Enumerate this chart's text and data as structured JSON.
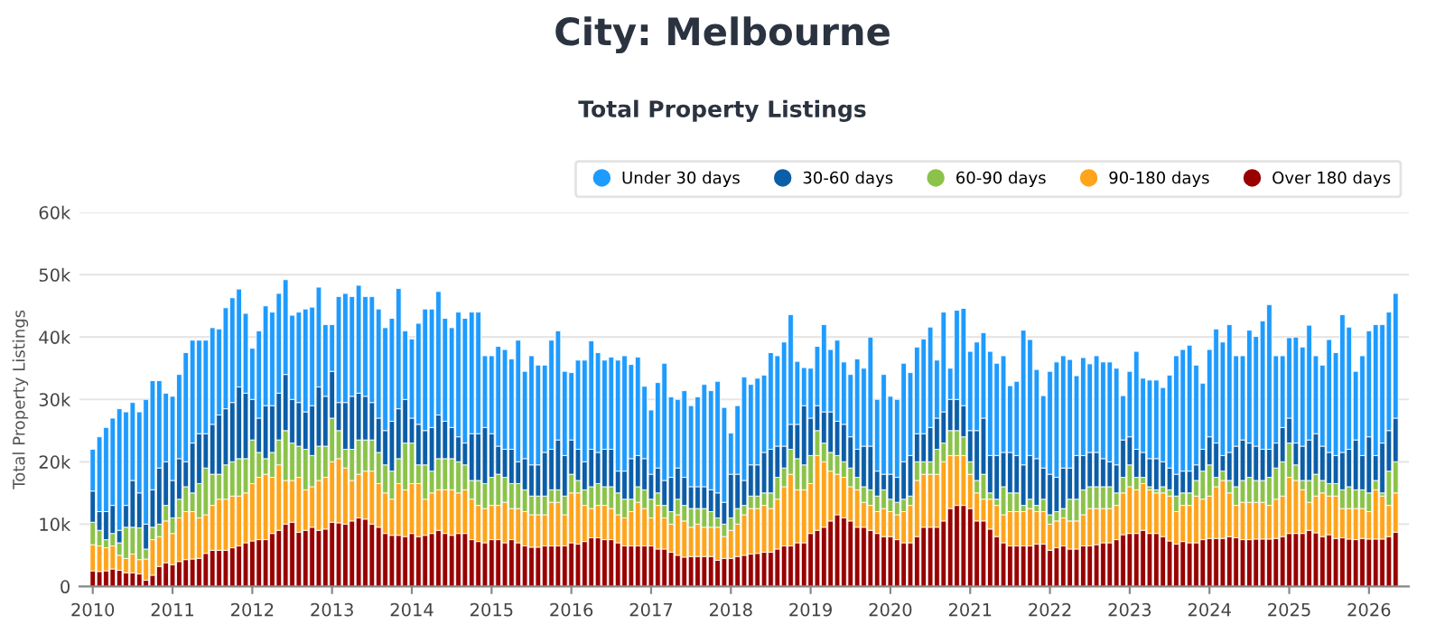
{
  "chart_data": {
    "type": "bar",
    "title": "City: Melbourne",
    "subtitle": "Total Property Listings",
    "ylabel": "Total Property Listings",
    "stacked": true,
    "grid": "y",
    "legend": "top right",
    "ylim": [
      0,
      60000
    ],
    "yticks": [
      0,
      {
        "value": 10000,
        "label": "10k"
      },
      {
        "value": 20000,
        "label": "20k"
      },
      {
        "value": 30000,
        "label": "30k"
      },
      {
        "value": 40000,
        "label": "40k"
      },
      {
        "value": 50000,
        "label": "50k"
      },
      {
        "value": 60000,
        "label": "60k"
      }
    ],
    "categories": [
      "2010",
      null,
      null,
      null,
      null,
      null,
      null,
      null,
      null,
      null,
      null,
      null,
      "2011",
      null,
      null,
      null,
      null,
      null,
      null,
      null,
      null,
      null,
      null,
      null,
      "2012",
      null,
      null,
      null,
      null,
      null,
      null,
      null,
      null,
      null,
      null,
      null,
      "2013",
      null,
      null,
      null,
      null,
      null,
      null,
      null,
      null,
      null,
      null,
      null,
      "2014",
      null,
      null,
      null,
      null,
      null,
      null,
      null,
      null,
      null,
      null,
      null,
      "2015",
      null,
      null,
      null,
      null,
      null,
      null,
      null,
      null,
      null,
      null,
      null,
      "2016",
      null,
      null,
      null,
      null,
      null,
      null,
      null,
      null,
      null,
      null,
      null,
      "2017",
      null,
      null,
      null,
      null,
      null,
      null,
      null,
      null,
      null,
      null,
      null,
      "2018",
      null,
      null,
      null,
      null,
      null,
      null,
      null,
      null,
      null,
      null,
      null,
      "2019",
      null,
      null,
      null,
      null,
      null,
      null,
      null,
      null,
      null,
      null,
      null,
      "2020",
      null,
      null,
      null,
      null,
      null,
      null,
      null,
      null,
      null,
      null,
      null,
      "2021",
      null,
      null,
      null,
      null,
      null,
      null,
      null,
      null,
      null,
      null,
      null,
      "2022",
      null,
      null,
      null,
      null,
      null,
      null,
      null,
      null,
      null,
      null,
      null,
      "2023",
      null,
      null,
      null,
      null,
      null,
      null,
      null,
      null,
      null,
      null,
      null,
      "2024",
      null,
      null,
      null,
      null,
      null,
      null,
      null,
      null,
      null,
      null,
      null,
      "2025",
      null,
      null,
      null,
      null,
      null,
      null,
      null,
      null,
      null,
      null,
      null,
      "2026",
      null,
      null,
      null,
      null
    ],
    "series": [
      {
        "name": "Over 180 days",
        "color": "#990000",
        "values": [
          2500,
          2400,
          2500,
          2800,
          2600,
          2200,
          2200,
          2000,
          1000,
          1800,
          3200,
          3800,
          3500,
          4000,
          4300,
          4400,
          4500,
          5300,
          5800,
          5800,
          5800,
          6200,
          6500,
          7000,
          7300,
          7500,
          7500,
          8500,
          9000,
          10000,
          10300,
          8700,
          9000,
          9500,
          9000,
          9200,
          10300,
          10200,
          10000,
          10500,
          11000,
          10800,
          10000,
          9500,
          8500,
          8200,
          8200,
          8000,
          8500,
          8000,
          8200,
          8500,
          9000,
          8500,
          8200,
          8500,
          8500,
          7500,
          7200,
          7000,
          7500,
          7500,
          7000,
          7500,
          7000,
          6500,
          6300,
          6300,
          6500,
          6500,
          6500,
          6500,
          7000,
          6800,
          7200,
          7800,
          7800,
          7500,
          7500,
          7000,
          6500,
          6500,
          6500,
          6500,
          6500,
          6000,
          6000,
          5500,
          5000,
          4700,
          4800,
          4800,
          4800,
          4800,
          4200,
          4500,
          4500,
          4800,
          5000,
          5200,
          5300,
          5500,
          5500,
          6000,
          6500,
          6500,
          7000,
          7000,
          8500,
          9000,
          9500,
          10500,
          11500,
          11000,
          10500,
          9500,
          9500,
          9000,
          8500,
          8000,
          8000,
          7500,
          7000,
          7000,
          8000,
          9500,
          9500,
          9500,
          10500,
          12500,
          13000,
          13000,
          12500,
          10500,
          10500,
          9200,
          8000,
          7000,
          6500,
          6500,
          6500,
          6500,
          6800,
          6800,
          5800,
          6200,
          6500,
          6000,
          6000,
          6500,
          6500,
          6700,
          7000,
          7000,
          7500,
          8300,
          8500,
          8500,
          9000,
          8500,
          8500,
          8000,
          7300,
          6800,
          7200,
          7000,
          7000,
          7500,
          7700,
          7700,
          7700,
          8000,
          7800,
          7500,
          7500,
          7600,
          7600,
          7600,
          7700,
          8000,
          8500,
          8500,
          8500,
          9000,
          8600,
          8000,
          8300,
          7700,
          7800,
          7600,
          7500,
          7700,
          7600,
          7600,
          7600,
          8000,
          8700
        ]
      },
      {
        "name": "90-180 days",
        "color": "#ffa41b",
        "values": [
          4200,
          4100,
          3700,
          3700,
          2400,
          2300,
          3000,
          2300,
          3400,
          5700,
          4800,
          6700,
          5000,
          7000,
          7700,
          7600,
          6500,
          6200,
          7200,
          8200,
          8200,
          8300,
          8000,
          8000,
          9200,
          10000,
          10500,
          9000,
          10500,
          7000,
          6700,
          8800,
          6500,
          6500,
          8000,
          8300,
          9700,
          10300,
          9000,
          6500,
          7000,
          7700,
          8500,
          7000,
          6500,
          5800,
          8300,
          7500,
          8000,
          8500,
          5800,
          6500,
          6500,
          7000,
          7300,
          6500,
          7000,
          6500,
          5800,
          5500,
          5500,
          5500,
          6500,
          5000,
          5500,
          5500,
          5200,
          5200,
          5000,
          7000,
          7000,
          5000,
          8000,
          8200,
          5800,
          4700,
          5200,
          5500,
          5000,
          4500,
          4500,
          5500,
          7000,
          6000,
          4500,
          7000,
          5000,
          4500,
          6500,
          5800,
          4700,
          5200,
          4700,
          4700,
          5300,
          3500,
          4500,
          5200,
          6500,
          7300,
          7200,
          7500,
          7000,
          8000,
          9500,
          11500,
          8500,
          8500,
          8000,
          12000,
          10500,
          8000,
          6500,
          6500,
          5500,
          6000,
          4000,
          4000,
          3500,
          4500,
          4000,
          4000,
          5000,
          6000,
          9000,
          8500,
          8500,
          8500,
          9500,
          8500,
          8000,
          8000,
          5500,
          4500,
          3500,
          4800,
          5000,
          4500,
          5500,
          5500,
          5500,
          6000,
          5200,
          5200,
          4200,
          4300,
          4500,
          4500,
          4500,
          5000,
          6000,
          5800,
          5500,
          5500,
          5500,
          6700,
          7500,
          7000,
          7500,
          7000,
          6500,
          7000,
          7200,
          5200,
          5800,
          6000,
          7500,
          6500,
          6800,
          8300,
          9300,
          7000,
          5200,
          6000,
          6000,
          5900,
          5900,
          5400,
          6300,
          6500,
          9000,
          8500,
          7000,
          4500,
          5900,
          7000,
          6200,
          6800,
          4700,
          4900,
          5000,
          4800,
          4400,
          7900,
          6900,
          5000,
          6300
        ]
      },
      {
        "name": "60-90 days",
        "color": "#8bc34a",
        "values": [
          3600,
          2500,
          1300,
          2000,
          2000,
          5000,
          4300,
          5100,
          1600,
          2000,
          2000,
          2500,
          2500,
          3000,
          4000,
          3000,
          5500,
          7500,
          5000,
          4000,
          5500,
          5500,
          6000,
          5500,
          7000,
          4000,
          2500,
          4000,
          4000,
          8000,
          6000,
          5000,
          6500,
          5000,
          5500,
          5000,
          7000,
          4500,
          3000,
          5000,
          5500,
          5000,
          5000,
          5000,
          4500,
          4500,
          4000,
          7500,
          6500,
          3000,
          5500,
          3500,
          5000,
          5000,
          5000,
          5000,
          4000,
          3000,
          4000,
          4000,
          4500,
          5000,
          4000,
          4000,
          4000,
          3500,
          3000,
          3000,
          3000,
          2000,
          2000,
          3000,
          3000,
          2000,
          2500,
          3500,
          3500,
          3000,
          3500,
          3500,
          3000,
          2000,
          2500,
          3000,
          3000,
          2000,
          2000,
          2000,
          2500,
          2500,
          3000,
          2500,
          3000,
          2500,
          1500,
          2000,
          2000,
          2500,
          1500,
          2000,
          2000,
          2000,
          2500,
          3500,
          3000,
          4000,
          5000,
          4000,
          4500,
          4000,
          3000,
          3000,
          3000,
          2500,
          3000,
          2000,
          2500,
          2500,
          2500,
          3000,
          2000,
          2000,
          2000,
          1500,
          3000,
          2000,
          2000,
          4000,
          3000,
          4000,
          4000,
          3000,
          2000,
          2000,
          4000,
          1000,
          1000,
          4500,
          3000,
          3000,
          1000,
          1500,
          1000,
          2000,
          1500,
          1500,
          1500,
          3500,
          3500,
          4000,
          3500,
          3500,
          3500,
          3500,
          2000,
          2500,
          3500,
          2000,
          1000,
          500,
          500,
          1000,
          1000,
          2500,
          2000,
          2000,
          2500,
          4500,
          5000,
          1500,
          1500,
          2000,
          3000,
          3500,
          4000,
          3500,
          3500,
          4500,
          5000,
          5500,
          5500,
          2500,
          1500,
          3500,
          3500,
          2000,
          2000,
          2000,
          3000,
          3500,
          3000,
          3000,
          3000,
          1500,
          500,
          5500,
          5000
        ]
      },
      {
        "name": "30-60 days",
        "color": "#0b5ea8",
        "values": [
          5000,
          3000,
          4500,
          4500,
          2000,
          3500,
          7500,
          5600,
          4000,
          6000,
          9000,
          7000,
          6000,
          6500,
          4000,
          8000,
          8000,
          5500,
          8000,
          9500,
          9000,
          9500,
          11500,
          10500,
          6500,
          5500,
          8500,
          7500,
          7500,
          9000,
          7000,
          7000,
          6000,
          8000,
          9500,
          8000,
          7500,
          4500,
          7500,
          8500,
          7500,
          7000,
          6000,
          5500,
          5500,
          8000,
          8000,
          7000,
          4000,
          6500,
          5500,
          7000,
          7000,
          6000,
          5000,
          4000,
          3500,
          7500,
          7500,
          9000,
          7000,
          4500,
          4500,
          5500,
          3500,
          5000,
          5000,
          5000,
          7000,
          6500,
          8000,
          6500,
          5500,
          5000,
          4500,
          6000,
          5000,
          6000,
          6000,
          3500,
          4500,
          6500,
          5000,
          5000,
          4000,
          4000,
          4000,
          5500,
          5000,
          4500,
          3500,
          3500,
          3500,
          3500,
          4000,
          3500,
          7000,
          5500,
          4000,
          5000,
          5000,
          6500,
          7000,
          5000,
          3500,
          4000,
          5500,
          9500,
          6000,
          4000,
          5000,
          6500,
          5500,
          6000,
          5000,
          4500,
          6500,
          7000,
          4000,
          2500,
          4000,
          4000,
          6000,
          6500,
          4500,
          4500,
          5500,
          5000,
          5000,
          5000,
          5000,
          5000,
          5000,
          8000,
          9000,
          6000,
          7000,
          5500,
          6500,
          6000,
          6500,
          7000,
          7500,
          5000,
          6500,
          5500,
          6500,
          5000,
          7000,
          5500,
          5500,
          5500,
          4500,
          4000,
          4500,
          6000,
          4500,
          4500,
          4000,
          4500,
          5000,
          4000,
          3500,
          3500,
          3500,
          3500,
          2500,
          3500,
          4500,
          5500,
          2500,
          4500,
          6500,
          6500,
          5500,
          5500,
          5000,
          4500,
          4000,
          5500,
          4000,
          3500,
          5500,
          6500,
          6500,
          5500,
          5000,
          4500,
          6000,
          6000,
          8000,
          5500,
          9000,
          4000,
          8000,
          6500,
          7000
        ]
      },
      {
        "name": "Under 30 days",
        "color": "#1e9bff",
        "values": [
          6700,
          12000,
          13500,
          14000,
          19500,
          15000,
          12500,
          13000,
          20000,
          17500,
          14000,
          11000,
          13500,
          13500,
          17500,
          16500,
          15000,
          15000,
          15500,
          13800,
          16200,
          16800,
          15700,
          12800,
          8200,
          14000,
          16000,
          15000,
          16000,
          15200,
          13500,
          14500,
          16500,
          15800,
          16000,
          11500,
          7500,
          17000,
          17500,
          16000,
          17300,
          16000,
          17000,
          17500,
          16500,
          16500,
          19300,
          11000,
          12700,
          16200,
          19500,
          19000,
          19800,
          16500,
          16000,
          20000,
          20000,
          19500,
          19500,
          11500,
          12500,
          16000,
          16000,
          14500,
          19500,
          14000,
          17500,
          16000,
          14000,
          17500,
          17500,
          13500,
          10800,
          14300,
          16300,
          17400,
          16000,
          14300,
          14800,
          17800,
          18500,
          15100,
          15800,
          11600,
          10300,
          13700,
          18800,
          12900,
          11000,
          13900,
          13000,
          14400,
          16400,
          15900,
          17900,
          15200,
          6600,
          11000,
          16600,
          12900,
          13900,
          12400,
          15500,
          14500,
          16700,
          17600,
          10100,
          6100,
          8000,
          9500,
          14000,
          10000,
          13000,
          10000,
          10000,
          14500,
          12500,
          17500,
          11500,
          16000,
          12500,
          12500,
          15800,
          13300,
          13900,
          15200,
          16100,
          9300,
          16000,
          5000,
          14300,
          15600,
          12700,
          14200,
          13700,
          16700,
          14800,
          15500,
          10700,
          11900,
          21600,
          18600,
          14300,
          11600,
          16500,
          18500,
          18000,
          17400,
          12800,
          15700,
          14200,
          15500,
          15500,
          16000,
          15500,
          7100,
          10500,
          15700,
          11900,
          12600,
          12600,
          11900,
          14900,
          19000,
          19500,
          20200,
          16000,
          10600,
          14000,
          18300,
          18200,
          20500,
          14500,
          13500,
          18100,
          17600,
          20600,
          23200,
          14000,
          11500,
          12900,
          17000,
          15900,
          18400,
          12500,
          13000,
          18100,
          16500,
          22100,
          19600,
          11000,
          16000,
          17000,
          21000,
          19000,
          19000,
          20000
        ]
      }
    ]
  }
}
